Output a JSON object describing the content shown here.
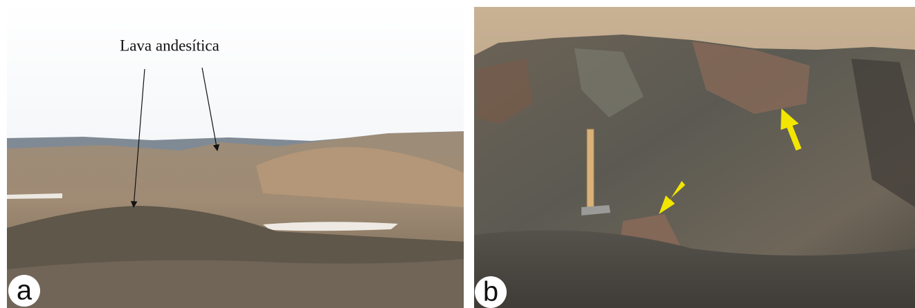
{
  "panels": [
    {
      "label": "a",
      "annotation": "Lava andesítica"
    },
    {
      "label": "b"
    }
  ]
}
